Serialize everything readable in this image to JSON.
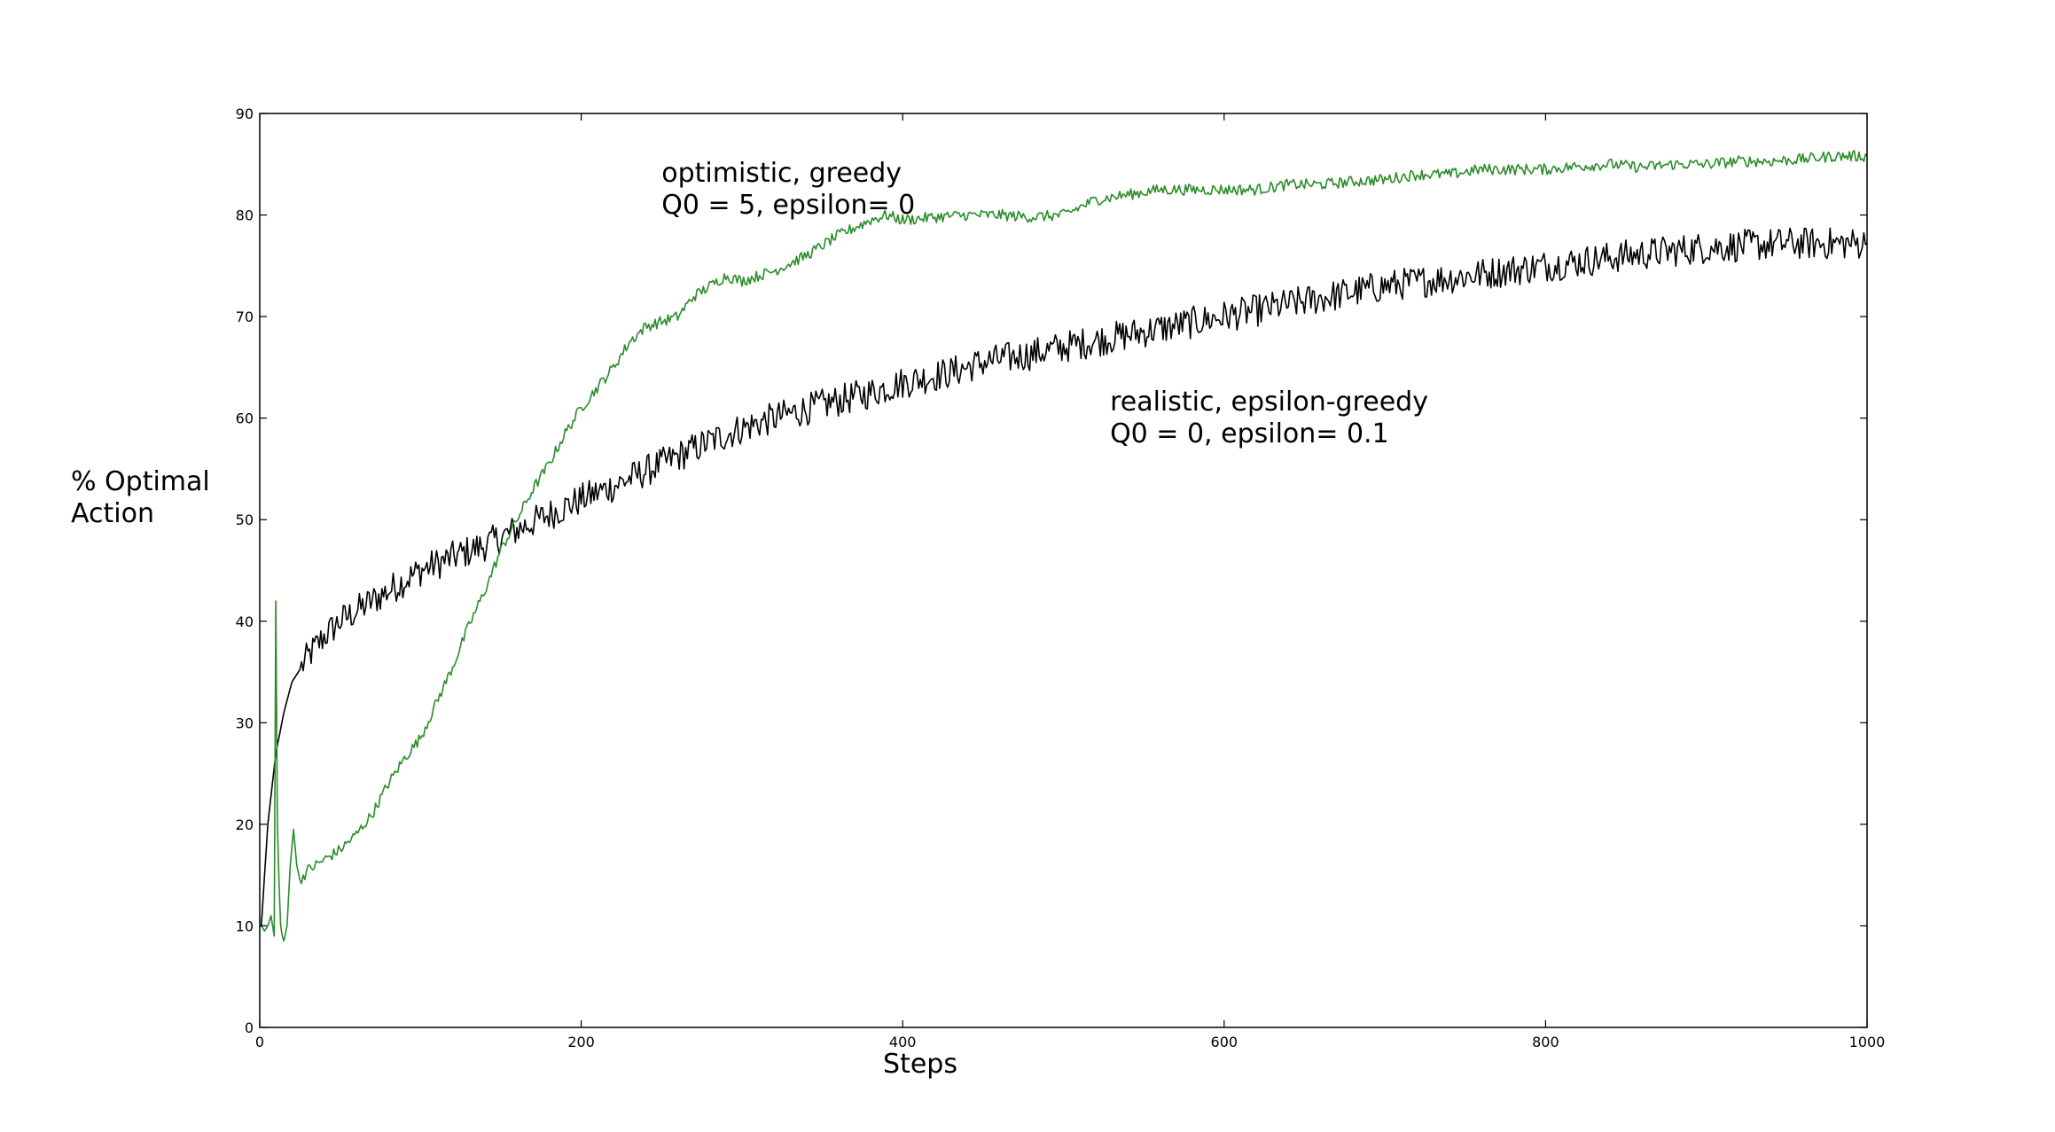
{
  "chart_data": {
    "type": "line",
    "title": "",
    "xlabel": "Steps",
    "ylabel": [
      "% Optimal",
      "Action"
    ],
    "xlim": [
      0,
      1000
    ],
    "ylim": [
      0,
      90
    ],
    "xticks": [
      0,
      200,
      400,
      600,
      800,
      1000
    ],
    "yticks": [
      0,
      10,
      20,
      30,
      40,
      50,
      60,
      70,
      80,
      90
    ],
    "grid": false,
    "legend": "none",
    "series": [
      {
        "color": "#000000",
        "x": [
          1,
          5,
          10,
          15,
          20,
          30,
          40,
          50,
          60,
          80,
          100,
          120,
          140,
          160,
          180,
          200,
          220,
          250,
          280,
          300,
          320,
          350,
          380,
          400,
          430,
          450,
          480,
          500,
          550,
          600,
          650,
          700,
          750,
          800,
          850,
          900,
          950,
          1000
        ],
        "y": [
          10,
          20,
          27,
          31,
          34,
          36.5,
          38.5,
          40,
          41,
          43,
          45,
          46.3,
          47.5,
          49,
          50.5,
          52,
          53.3,
          55.5,
          57.7,
          59,
          60,
          61.3,
          62.5,
          63.5,
          64.5,
          65.5,
          66.3,
          67,
          68.5,
          70,
          71.5,
          73,
          74,
          75,
          76,
          76.8,
          77.2,
          77.2
        ]
      },
      {
        "color": "#2a8c2a",
        "x": [
          1,
          3,
          5,
          7,
          9,
          10,
          11,
          12,
          13,
          14,
          15,
          17,
          19,
          21,
          23,
          25,
          30,
          40,
          50,
          60,
          70,
          80,
          90,
          100,
          110,
          120,
          130,
          140,
          150,
          160,
          170,
          180,
          190,
          200,
          210,
          220,
          230,
          240,
          250,
          260,
          270,
          280,
          290,
          300,
          320,
          340,
          360,
          380,
          390,
          400,
          420,
          440,
          460,
          480,
          500,
          520,
          540,
          560,
          580,
          600,
          620,
          640,
          660,
          680,
          700,
          720,
          740,
          760,
          780,
          800,
          820,
          840,
          860,
          880,
          900,
          920,
          940,
          960,
          980,
          1000
        ],
        "y": [
          10,
          9.5,
          10,
          11,
          9,
          42,
          20,
          14,
          10,
          9,
          8.5,
          10,
          16,
          19.5,
          16,
          14.5,
          15.5,
          16.5,
          17.5,
          19,
          21,
          24,
          26.5,
          28.5,
          32,
          35.5,
          39.5,
          43,
          47,
          50,
          53,
          55.5,
          58.5,
          61,
          63,
          65,
          67.5,
          69,
          69.5,
          70,
          72,
          73,
          74,
          73.5,
          74.5,
          76,
          78,
          79.5,
          80,
          79.5,
          79.8,
          80,
          80,
          79.8,
          80,
          81.5,
          82,
          82.5,
          82.5,
          82.5,
          82.5,
          83,
          83,
          83.3,
          83.5,
          84,
          84,
          84.5,
          84.5,
          84.5,
          84.8,
          85,
          84.7,
          85,
          85,
          85.3,
          85.3,
          85.5,
          85.8,
          85.8
        ]
      }
    ],
    "annotations": [
      {
        "lines": [
          "optimistic, greedy",
          "Q0 = 5, epsilon= 0"
        ],
        "x": 250,
        "y": 81
      },
      {
        "lines": [
          "realistic, epsilon-greedy",
          "Q0 = 0,  epsilon= 0.1"
        ],
        "x": 529,
        "y": 58.5
      }
    ]
  }
}
